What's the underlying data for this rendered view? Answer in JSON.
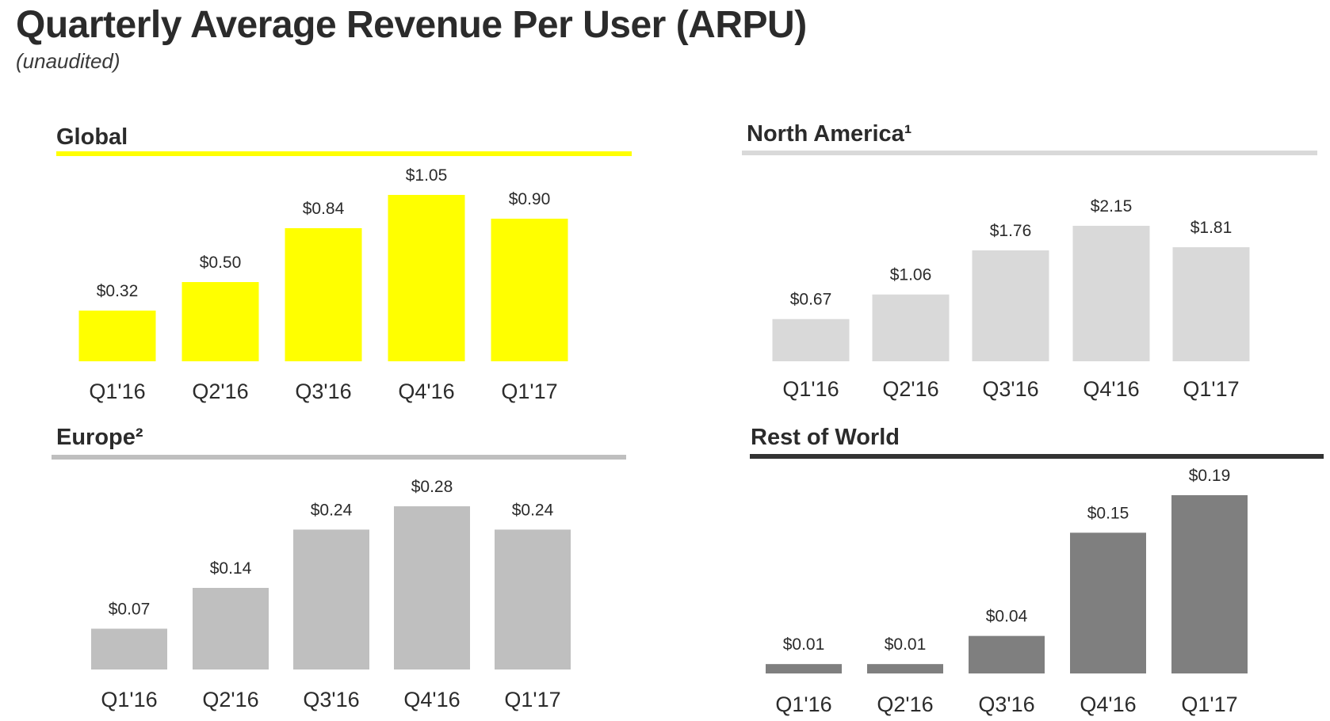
{
  "header": {
    "title": "Quarterly Average Revenue Per User (ARPU)",
    "subtitle": "(unaudited)"
  },
  "chart_data": [
    {
      "type": "bar",
      "title": "Global",
      "categories": [
        "Q1'16",
        "Q2'16",
        "Q3'16",
        "Q4'16",
        "Q1'17"
      ],
      "values": [
        0.32,
        0.5,
        0.84,
        1.05,
        0.9
      ],
      "value_labels": [
        "$0.32",
        "$0.50",
        "$0.84",
        "$1.05",
        "$0.90"
      ],
      "bar_color": "#ffff00",
      "rule_color": "#ffff00",
      "grid": false
    },
    {
      "type": "bar",
      "title": "North America¹",
      "categories": [
        "Q1'16",
        "Q2'16",
        "Q3'16",
        "Q4'16",
        "Q1'17"
      ],
      "values": [
        0.67,
        1.06,
        1.76,
        2.15,
        1.81
      ],
      "value_labels": [
        "$0.67",
        "$1.06",
        "$1.76",
        "$2.15",
        "$1.81"
      ],
      "bar_color": "#d9d9d9",
      "rule_color": "#d9d9d9",
      "grid": false
    },
    {
      "type": "bar",
      "title": "Europe²",
      "categories": [
        "Q1'16",
        "Q2'16",
        "Q3'16",
        "Q4'16",
        "Q1'17"
      ],
      "values": [
        0.07,
        0.14,
        0.24,
        0.28,
        0.24
      ],
      "value_labels": [
        "$0.07",
        "$0.14",
        "$0.24",
        "$0.28",
        "$0.24"
      ],
      "bar_color": "#bfbfbf",
      "rule_color": "#bfbfbf",
      "grid": false
    },
    {
      "type": "bar",
      "title": "Rest of World",
      "categories": [
        "Q1'16",
        "Q2'16",
        "Q3'16",
        "Q4'16",
        "Q1'17"
      ],
      "values": [
        0.01,
        0.01,
        0.04,
        0.15,
        0.19
      ],
      "value_labels": [
        "$0.01",
        "$0.01",
        "$0.04",
        "$0.15",
        "$0.19"
      ],
      "bar_color": "#7f7f7f",
      "rule_color": "#333333",
      "grid": false
    }
  ]
}
